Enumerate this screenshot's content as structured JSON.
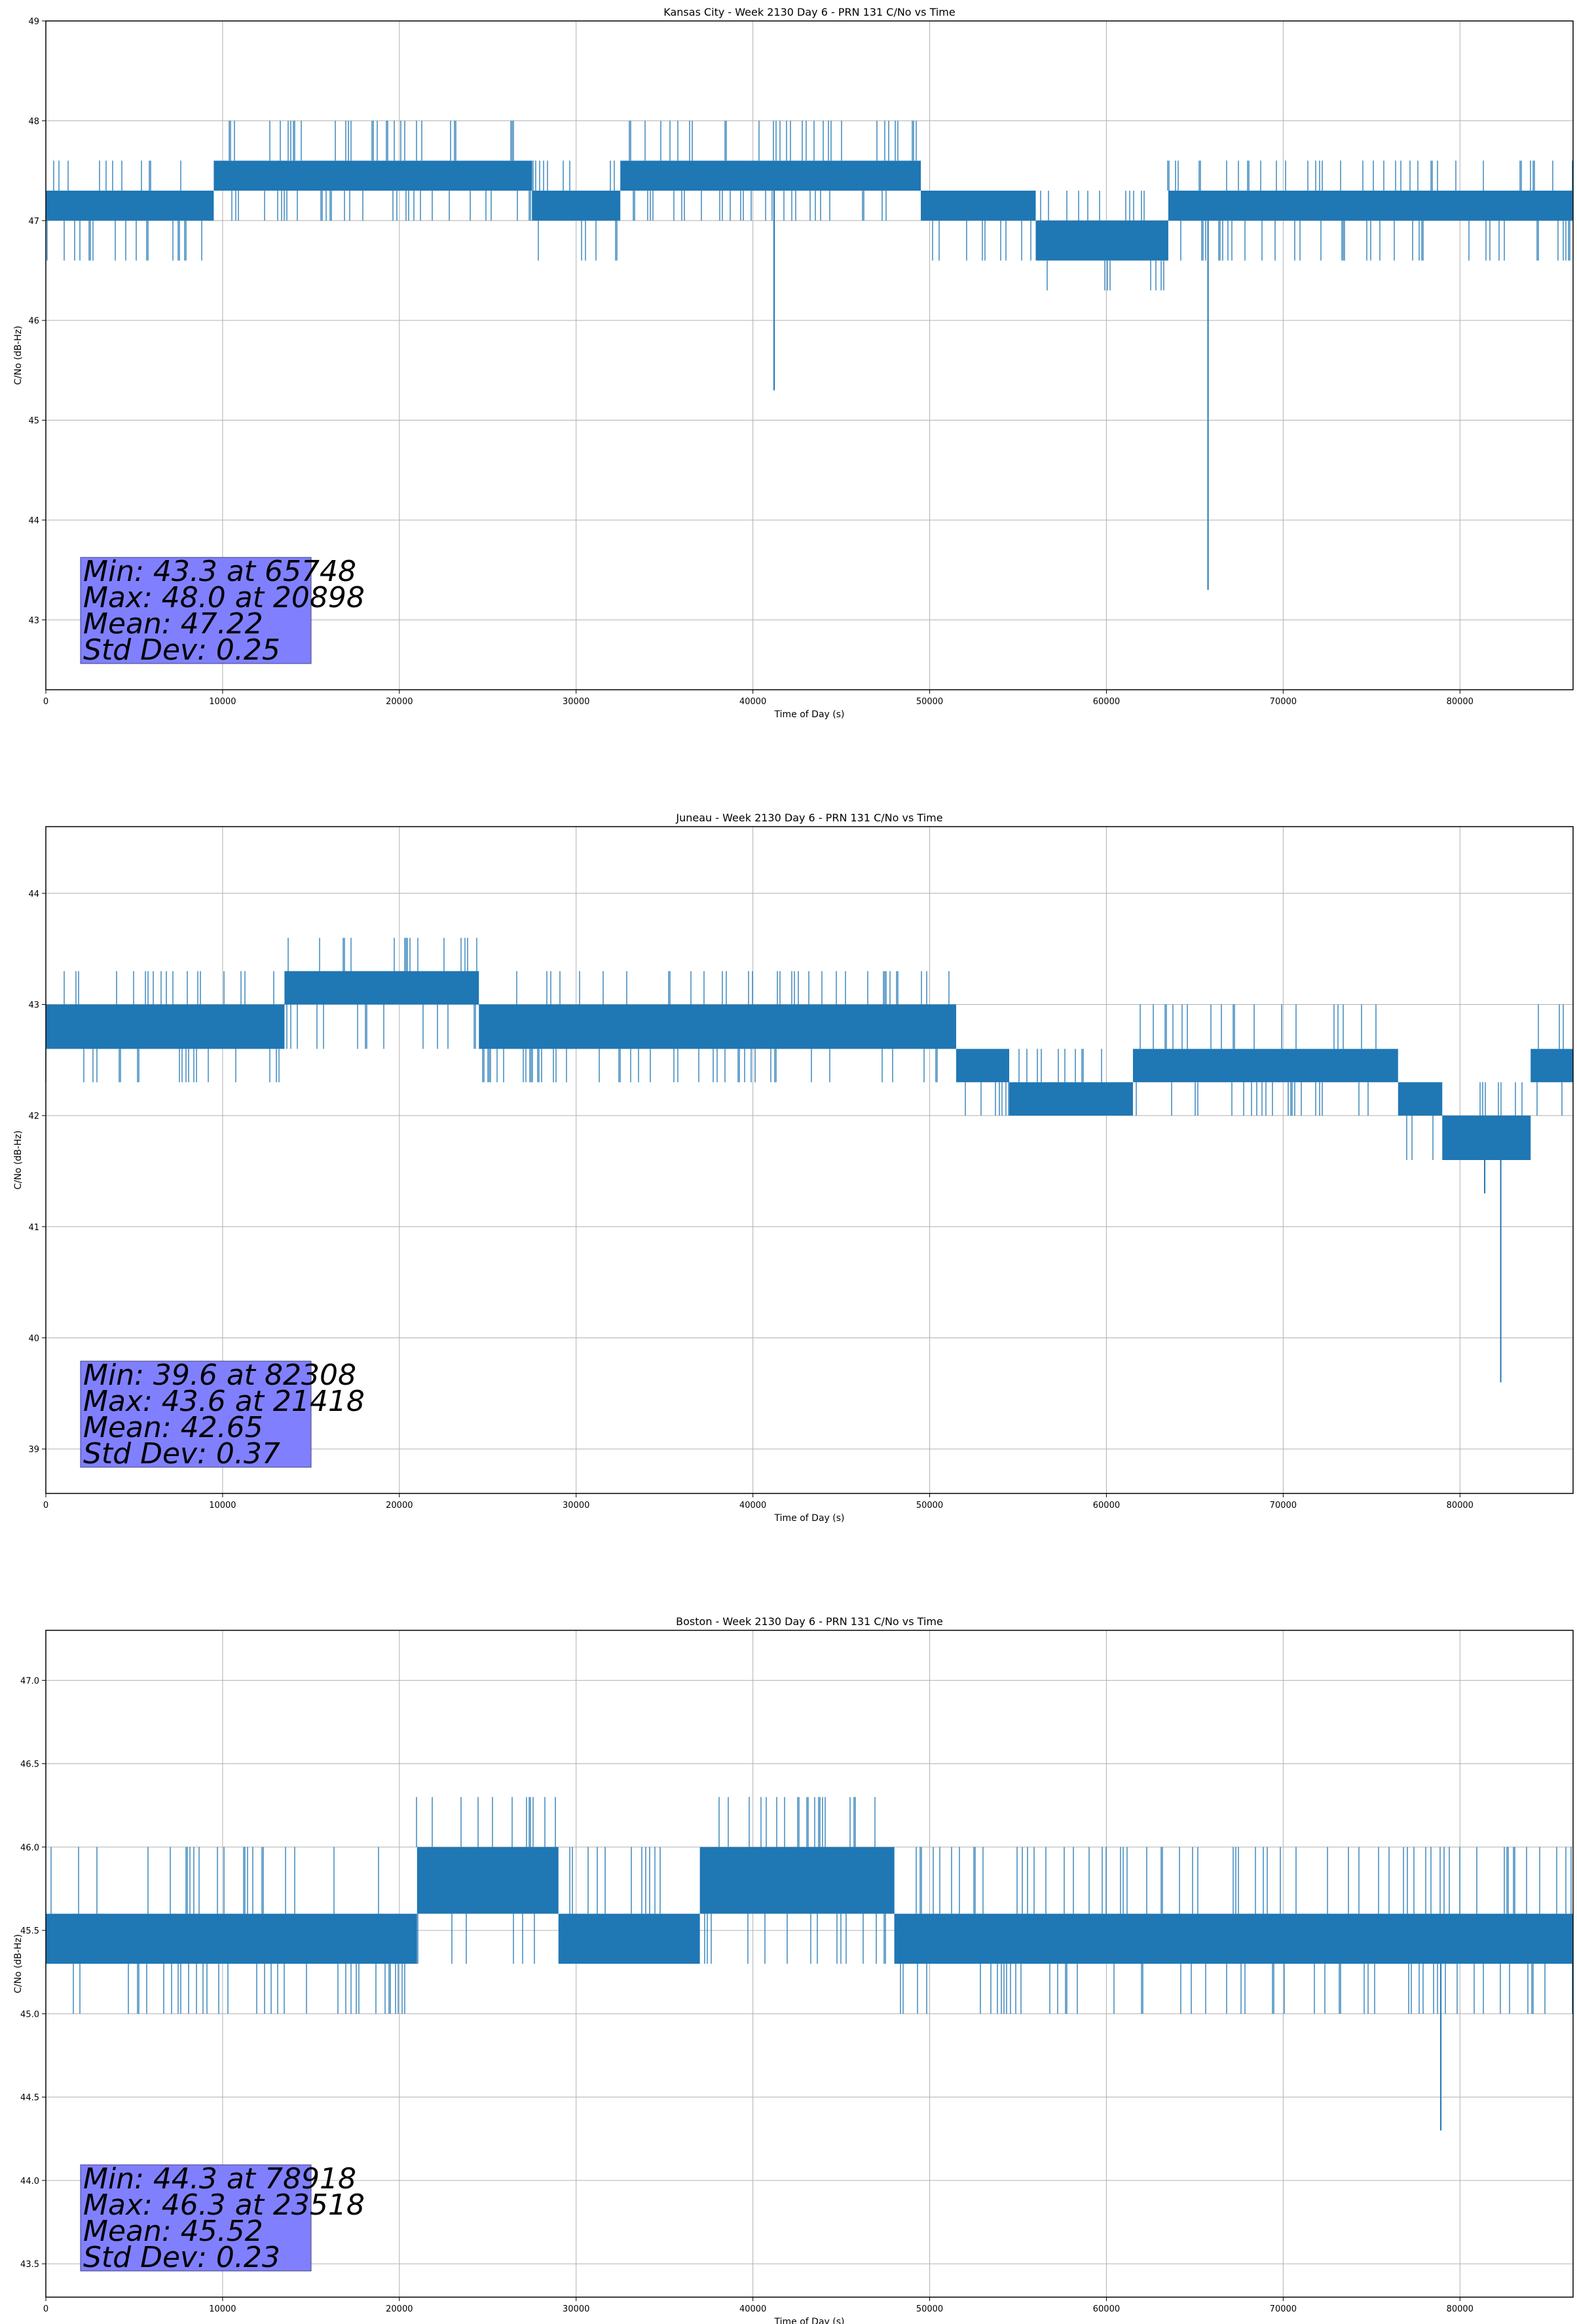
{
  "colors": {
    "series": "#1f77b4",
    "stats_box": "#8080ff",
    "grid": "#b0b0b0",
    "axes": "#000000"
  },
  "chart_data": [
    {
      "type": "line",
      "title": "Kansas City - Week 2130 Day 6 - PRN 131 C/No vs Time",
      "xlabel": "Time of Day (s)",
      "ylabel": "C/No (dB-Hz)",
      "xlim": [
        0,
        86400
      ],
      "ylim": [
        42.3,
        49.0
      ],
      "xticks": [
        0,
        10000,
        20000,
        30000,
        40000,
        50000,
        60000,
        70000,
        80000
      ],
      "yticks": [
        43,
        44,
        45,
        46,
        47,
        48,
        49
      ],
      "ytick_labels": [
        "43",
        "44",
        "45",
        "46",
        "47",
        "48",
        "49"
      ],
      "grid": true,
      "segments": [
        {
          "x": [
            0,
            9500
          ],
          "band": [
            47.0,
            47.3
          ],
          "high": 47.6,
          "low": 46.6
        },
        {
          "x": [
            9500,
            27500
          ],
          "band": [
            47.3,
            47.6
          ],
          "high": 48.0,
          "low": 47.0
        },
        {
          "x": [
            27500,
            32500
          ],
          "band": [
            47.0,
            47.3
          ],
          "high": 47.6,
          "low": 46.6
        },
        {
          "x": [
            32500,
            49500
          ],
          "band": [
            47.3,
            47.6
          ],
          "high": 48.0,
          "low": 47.0
        },
        {
          "x": [
            49500,
            56000
          ],
          "band": [
            47.0,
            47.3
          ],
          "high": 47.3,
          "low": 46.6
        },
        {
          "x": [
            56000,
            63500
          ],
          "band": [
            46.6,
            47.0
          ],
          "high": 47.3,
          "low": 46.3
        },
        {
          "x": [
            63500,
            86400
          ],
          "band": [
            47.0,
            47.3
          ],
          "high": 47.6,
          "low": 46.6
        }
      ],
      "spikes": [
        {
          "x": 41200,
          "y": 45.3
        },
        {
          "x": 65748,
          "y": 43.3
        }
      ],
      "stats": [
        "Min: 43.3 at 65748",
        "Max: 48.0 at 20898",
        "Mean: 47.22",
        "Std Dev: 0.25"
      ]
    },
    {
      "type": "line",
      "title": "Juneau - Week 2130 Day 6 - PRN 131 C/No vs Time",
      "xlabel": "Time of Day (s)",
      "ylabel": "C/No (dB-Hz)",
      "xlim": [
        0,
        86400
      ],
      "ylim": [
        38.6,
        44.6
      ],
      "xticks": [
        0,
        10000,
        20000,
        30000,
        40000,
        50000,
        60000,
        70000,
        80000
      ],
      "yticks": [
        39,
        40,
        41,
        42,
        43,
        44
      ],
      "ytick_labels": [
        "39",
        "40",
        "41",
        "42",
        "43",
        "44"
      ],
      "grid": true,
      "segments": [
        {
          "x": [
            0,
            13500
          ],
          "band": [
            42.6,
            43.0
          ],
          "high": 43.3,
          "low": 42.3
        },
        {
          "x": [
            13500,
            24500
          ],
          "band": [
            43.0,
            43.3
          ],
          "high": 43.6,
          "low": 42.6
        },
        {
          "x": [
            24500,
            51500
          ],
          "band": [
            42.6,
            43.0
          ],
          "high": 43.3,
          "low": 42.3
        },
        {
          "x": [
            51500,
            54500
          ],
          "band": [
            42.3,
            42.6
          ],
          "high": 42.6,
          "low": 42.0
        },
        {
          "x": [
            54500,
            61500
          ],
          "band": [
            42.0,
            42.3
          ],
          "high": 42.6,
          "low": 42.0
        },
        {
          "x": [
            61500,
            76500
          ],
          "band": [
            42.3,
            42.6
          ],
          "high": 43.0,
          "low": 42.0
        },
        {
          "x": [
            76500,
            79000
          ],
          "band": [
            42.0,
            42.3
          ],
          "high": 42.3,
          "low": 41.6
        },
        {
          "x": [
            79000,
            84000
          ],
          "band": [
            41.6,
            42.0
          ],
          "high": 42.3,
          "low": 41.6
        },
        {
          "x": [
            84000,
            86400
          ],
          "band": [
            42.3,
            42.6
          ],
          "high": 43.0,
          "low": 42.0
        }
      ],
      "spikes": [
        {
          "x": 81400,
          "y": 41.3
        },
        {
          "x": 82308,
          "y": 39.6
        }
      ],
      "stats": [
        "Min: 39.6 at 82308",
        "Max: 43.6 at 21418",
        "Mean: 42.65",
        "Std Dev: 0.37"
      ]
    },
    {
      "type": "line",
      "title": "Boston - Week 2130 Day 6 - PRN 131 C/No vs Time",
      "xlabel": "Time of Day (s)",
      "ylabel": "C/No (dB-Hz)",
      "xlim": [
        0,
        86400
      ],
      "ylim": [
        43.3,
        47.3
      ],
      "xticks": [
        0,
        10000,
        20000,
        30000,
        40000,
        50000,
        60000,
        70000,
        80000
      ],
      "yticks": [
        43.5,
        44.0,
        44.5,
        45.0,
        45.5,
        46.0,
        46.5,
        47.0
      ],
      "ytick_labels": [
        "43.5",
        "44.0",
        "44.5",
        "45.0",
        "45.5",
        "46.0",
        "46.5",
        "47.0"
      ],
      "grid": true,
      "segments": [
        {
          "x": [
            0,
            21000
          ],
          "band": [
            45.3,
            45.6
          ],
          "high": 46.0,
          "low": 45.0
        },
        {
          "x": [
            21000,
            29000
          ],
          "band": [
            45.6,
            46.0
          ],
          "high": 46.3,
          "low": 45.3
        },
        {
          "x": [
            29000,
            37000
          ],
          "band": [
            45.3,
            45.6
          ],
          "high": 46.0,
          "low": 45.3
        },
        {
          "x": [
            37000,
            48000
          ],
          "band": [
            45.6,
            46.0
          ],
          "high": 46.3,
          "low": 45.3
        },
        {
          "x": [
            48000,
            86400
          ],
          "band": [
            45.3,
            45.6
          ],
          "high": 46.0,
          "low": 45.0
        }
      ],
      "spikes": [
        {
          "x": 78918,
          "y": 44.3
        }
      ],
      "stats": [
        "Min: 44.3 at 78918",
        "Max: 46.3 at 23518",
        "Mean: 45.52",
        "Std Dev: 0.23"
      ]
    }
  ]
}
